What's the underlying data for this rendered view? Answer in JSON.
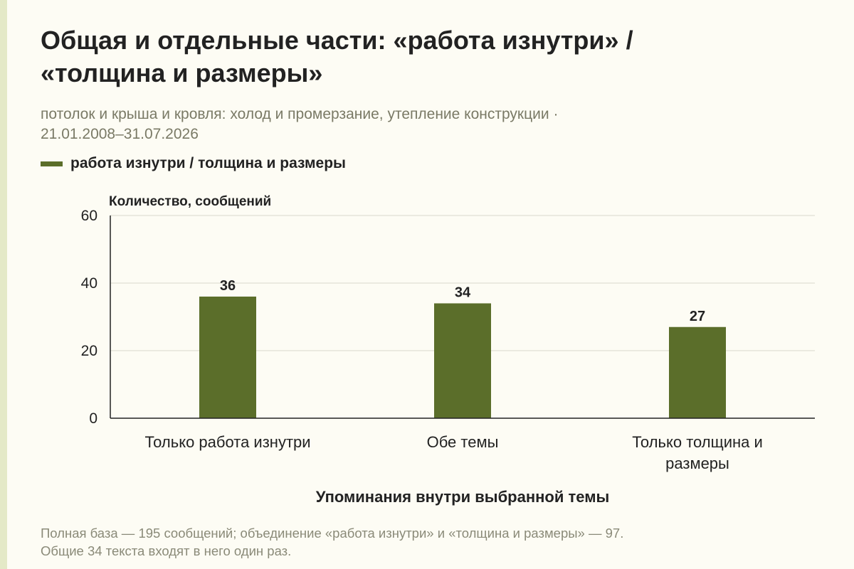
{
  "header": {
    "title_line1": "Общая и отдельные части: «работа изнутри» /",
    "title_line2": "«толщина и размеры»",
    "subtitle_line1": "потолок и крыша и кровля: холод и промерзание, утепление конструкции ·",
    "subtitle_line2": "21.01.2008–31.07.2026"
  },
  "legend": {
    "label": "работа изнутри / толщина и размеры",
    "color": "#5b6e2a"
  },
  "chart_data": {
    "type": "bar",
    "categories": [
      [
        "Только работа изнутри"
      ],
      [
        "Обе темы"
      ],
      [
        "Только толщина и",
        "размеры"
      ]
    ],
    "series": [
      {
        "name": "работа изнутри / толщина и размеры",
        "values": [
          36,
          34,
          27
        ]
      }
    ],
    "ylabel": "Количество, сообщений",
    "xlabel": "Упоминания внутри выбранной темы",
    "ylim": [
      0,
      60
    ],
    "yticks": [
      0,
      20,
      40,
      60
    ],
    "grid": true,
    "legend_position": "top-left",
    "bar_color": "#5b6e2a",
    "data_labels": true
  },
  "footnote": {
    "line1": "Полная база — 195 сообщений; объединение «работа изнутри» и «толщина и размеры» — 97.",
    "line2": "Общие 34 текста входят в него один раз."
  }
}
